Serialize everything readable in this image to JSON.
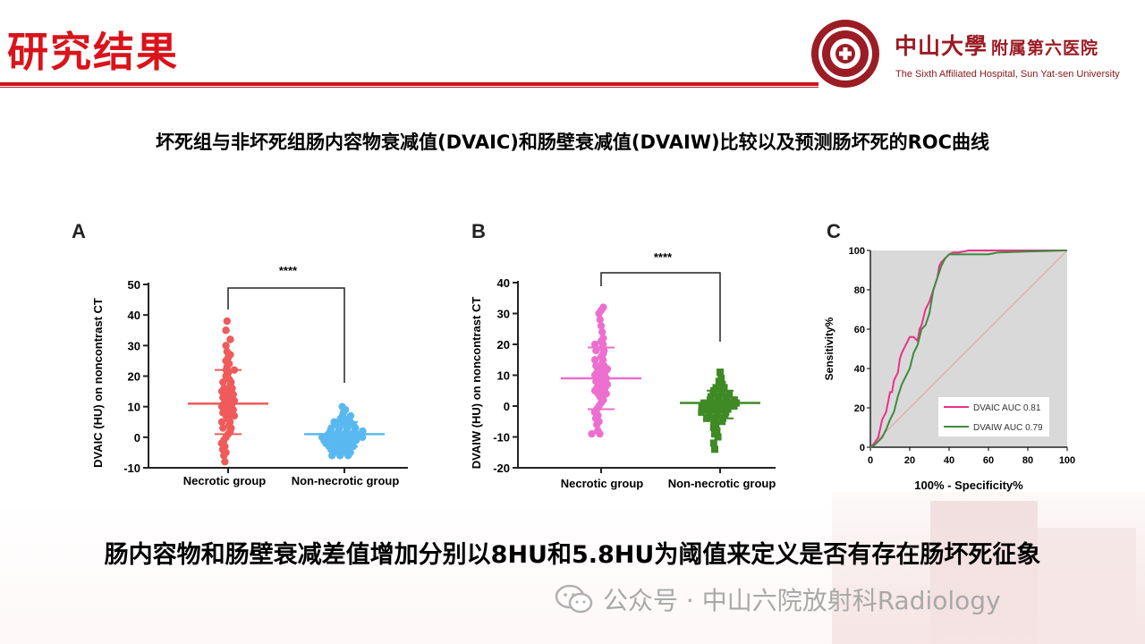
{
  "header": {
    "title": "研究结果",
    "logo_name": "中山大學",
    "logo_subname": "附属第六医院",
    "logo_english": "The Sixth Affiliated Hospital, Sun Yat-sen University"
  },
  "subtitle": "坏死组与非坏死组肠内容物衰减值(DVAIC)和肠壁衰减值(DVAIW)比较以及预测肠坏死的ROC曲线",
  "conclusion": "肠内容物和肠壁衰减差值增加分别以8HU和5.8HU为阈值来定义是否有存在肠坏死征象",
  "watermark": "公众号 · 中山六院放射科Radiology",
  "colors": {
    "accent": "#d9141b",
    "panelA_necrotic": "#ef5a5a",
    "panelA_non": "#5ab8f0",
    "panelB_necrotic": "#ec6fd0",
    "panelB_non": "#3f8a25",
    "roc_dvaic": "#e8338a",
    "roc_dvaiw": "#3f8a3f"
  },
  "chart_data": [
    {
      "panel": "A",
      "type": "scatter",
      "ylabel": "DVAIC (HU) on noncontrast CT",
      "categories": [
        "Necrotic group",
        "Non-necrotic group"
      ],
      "ylim": [
        -10,
        50
      ],
      "yticks": [
        -10,
        0,
        10,
        20,
        30,
        40,
        50
      ],
      "significance": "****",
      "series": [
        {
          "category": "Necrotic group",
          "mean": 11,
          "sd_low": 1,
          "sd_high": 22,
          "values": [
            38,
            35,
            32,
            30,
            28,
            27,
            26,
            25,
            24,
            23,
            22,
            22,
            21,
            20,
            19,
            18,
            18,
            17,
            16,
            16,
            15,
            15,
            14,
            14,
            13,
            13,
            12,
            12,
            11,
            11,
            10,
            10,
            9,
            9,
            8,
            8,
            7,
            7,
            6,
            5,
            5,
            4,
            3,
            3,
            2,
            1,
            0,
            -1,
            -2,
            -3,
            -4,
            -5,
            -6,
            -8
          ]
        },
        {
          "category": "Non-necrotic group",
          "mean": 1,
          "sd_low": -3,
          "sd_high": 5,
          "values": [
            10,
            9,
            8,
            7,
            7,
            6,
            6,
            5,
            5,
            5,
            4,
            4,
            4,
            3,
            3,
            3,
            3,
            2,
            2,
            2,
            2,
            2,
            1,
            1,
            1,
            1,
            1,
            0,
            0,
            0,
            0,
            0,
            0,
            -1,
            -1,
            -1,
            -1,
            -1,
            -2,
            -2,
            -2,
            -2,
            -3,
            -3,
            -3,
            -3,
            -4,
            -4,
            -4,
            -5,
            -5,
            -5,
            -6,
            -6,
            -6
          ]
        }
      ]
    },
    {
      "panel": "B",
      "type": "scatter",
      "ylabel": "DVAIW (HU) on noncontrast CT",
      "categories": [
        "Necrotic group",
        "Non-necrotic group"
      ],
      "ylim": [
        -20,
        40
      ],
      "yticks": [
        -20,
        -10,
        0,
        10,
        20,
        30,
        40
      ],
      "significance": "****",
      "series": [
        {
          "category": "Necrotic group",
          "mean": 9,
          "sd_low": -1,
          "sd_high": 19,
          "values": [
            32,
            31,
            30,
            28,
            26,
            24,
            22,
            21,
            20,
            20,
            19,
            18,
            18,
            17,
            16,
            15,
            15,
            14,
            13,
            13,
            12,
            12,
            11,
            11,
            10,
            10,
            9,
            9,
            8,
            8,
            7,
            7,
            6,
            6,
            5,
            5,
            4,
            4,
            3,
            2,
            1,
            0,
            -1,
            -2,
            -3,
            -4,
            -5,
            -6,
            -8,
            -9,
            -9
          ]
        },
        {
          "category": "Non-necrotic group",
          "mean": 1,
          "sd_low": -4,
          "sd_high": 5,
          "values": [
            11,
            9,
            8,
            7,
            6,
            6,
            5,
            5,
            4,
            4,
            4,
            3,
            3,
            3,
            2,
            2,
            2,
            2,
            1,
            1,
            1,
            1,
            1,
            0,
            0,
            0,
            0,
            0,
            -1,
            -1,
            -1,
            -1,
            -2,
            -2,
            -2,
            -2,
            -3,
            -3,
            -3,
            -4,
            -4,
            -4,
            -5,
            -5,
            -6,
            -7,
            -8,
            -9,
            -10,
            -12,
            -14
          ]
        }
      ]
    },
    {
      "panel": "C",
      "type": "line",
      "xlabel": "100% - Specificity%",
      "ylabel": "Sensitivity%",
      "xlim": [
        0,
        100
      ],
      "ylim": [
        0,
        100
      ],
      "xticks": [
        0,
        20,
        40,
        60,
        80,
        100
      ],
      "yticks": [
        0,
        20,
        40,
        60,
        80,
        100
      ],
      "series": [
        {
          "name": "DVAIC AUC 0.81",
          "x": [
            0,
            2,
            4,
            6,
            8,
            10,
            11,
            12,
            14,
            15,
            16,
            18,
            20,
            22,
            24,
            25,
            26,
            27,
            28,
            30,
            32,
            34,
            35,
            36,
            38,
            40,
            42,
            45,
            50,
            55,
            60,
            65,
            70,
            100
          ],
          "y": [
            0,
            2,
            5,
            14,
            18,
            28,
            28,
            34,
            38,
            45,
            48,
            52,
            56,
            56,
            54,
            60,
            62,
            66,
            70,
            74,
            80,
            86,
            92,
            94,
            96,
            98,
            99,
            99,
            100,
            100,
            100,
            100,
            100,
            100
          ]
        },
        {
          "name": "DVAIW AUC 0.79",
          "x": [
            0,
            2,
            4,
            6,
            8,
            10,
            12,
            14,
            16,
            18,
            20,
            22,
            24,
            26,
            28,
            30,
            32,
            34,
            36,
            38,
            40,
            45,
            50,
            60,
            65,
            100
          ],
          "y": [
            0,
            1,
            3,
            5,
            9,
            14,
            18,
            26,
            32,
            36,
            40,
            48,
            52,
            60,
            62,
            68,
            80,
            86,
            92,
            96,
            98,
            98,
            98,
            98,
            99,
            100
          ]
        }
      ],
      "reference_line": true,
      "legend_position": "bottom-right"
    }
  ]
}
